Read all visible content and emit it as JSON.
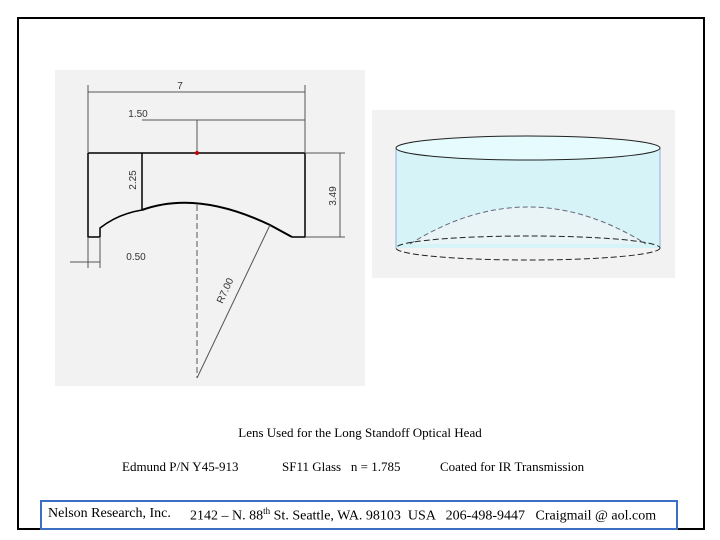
{
  "drawing": {
    "labels": [
      "7",
      "1.50",
      "2.25",
      "3.49",
      "0.50",
      "R7.00"
    ]
  },
  "caption": "Lens Used for the Long Standoff Optical Head",
  "specs": [
    "Edmund P/N Y45-913",
    "SF11 Glass   n = 1.785",
    "Coated for IR Transmission"
  ],
  "footer": {
    "company": "Nelson Research, Inc.",
    "address_start": "2142 – N. 88",
    "address_sup": "th",
    "address_end": " St. Seattle, WA. 98103  USA   206-498-9447   Craigmail @ aol.com"
  }
}
